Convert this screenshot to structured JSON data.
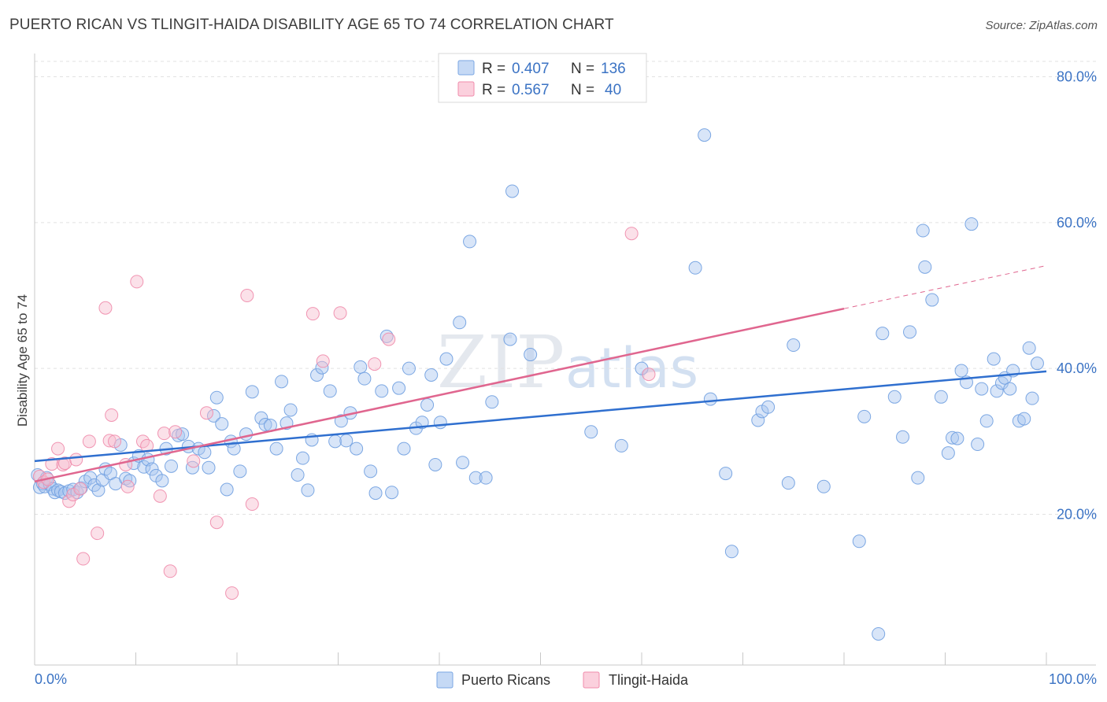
{
  "title": "PUERTO RICAN VS TLINGIT-HAIDA DISABILITY AGE 65 TO 74 CORRELATION CHART",
  "source": "Source: ZipAtlas.com",
  "watermark": {
    "part1": "ZIP",
    "part2": "atlas"
  },
  "legend": {
    "rows": [
      {
        "r_label": "R =",
        "r_value": "0.407",
        "n_label": "N =",
        "n_value": "136"
      },
      {
        "r_label": "R =",
        "r_value": "0.567",
        "n_label": "N =",
        "n_value": "40"
      }
    ]
  },
  "chart_data": {
    "type": "scatter",
    "title": "PUERTO RICAN VS TLINGIT-HAIDA DISABILITY AGE 65 TO 74 CORRELATION CHART",
    "ylabel": "Disability Age 65 to 74",
    "xlabel": "",
    "xlim": [
      0,
      100
    ],
    "ylim": [
      3,
      83
    ],
    "x_tick_labels": [
      "0.0%",
      "100.0%"
    ],
    "y_tick_labels": [
      "20.0%",
      "40.0%",
      "60.0%",
      "80.0%"
    ],
    "y_tick_values": [
      20,
      40,
      60,
      80
    ],
    "grid": "horizontal dashed",
    "legend_position": "top-center",
    "colors": {
      "puerto_ricans": "#6f9fe0",
      "tlingit_haida": "#f08bab",
      "blue_line": "#2f6fcf",
      "pink_line": "#e0668f"
    },
    "series": [
      {
        "name": "Puerto Ricans",
        "r": 0.407,
        "n": 136,
        "trend": {
          "x": [
            0,
            100
          ],
          "y": [
            27.3,
            39.6
          ]
        },
        "points": [
          [
            0.3,
            25.4
          ],
          [
            0.5,
            23.7
          ],
          [
            0.8,
            24.2
          ],
          [
            1,
            23.8
          ],
          [
            1.2,
            25
          ],
          [
            1.5,
            24.1
          ],
          [
            1.8,
            23.5
          ],
          [
            2,
            23
          ],
          [
            2.3,
            23.3
          ],
          [
            2.6,
            23.1
          ],
          [
            3,
            22.9
          ],
          [
            3.4,
            23.2
          ],
          [
            3.8,
            23.4
          ],
          [
            4.2,
            23
          ],
          [
            4.6,
            23.6
          ],
          [
            5,
            24.5
          ],
          [
            5.5,
            25
          ],
          [
            5.9,
            24
          ],
          [
            6.3,
            23.3
          ],
          [
            6.7,
            24.7
          ],
          [
            7,
            26.2
          ],
          [
            7.5,
            25.6
          ],
          [
            8,
            24.2
          ],
          [
            8.5,
            29.5
          ],
          [
            9,
            24.9
          ],
          [
            9.4,
            24.6
          ],
          [
            9.8,
            27
          ],
          [
            10.3,
            28
          ],
          [
            10.8,
            26.5
          ],
          [
            11.2,
            27.5
          ],
          [
            11.6,
            26.2
          ],
          [
            12,
            25.3
          ],
          [
            12.6,
            24.6
          ],
          [
            13,
            29
          ],
          [
            13.5,
            26.6
          ],
          [
            14.2,
            30.8
          ],
          [
            14.6,
            31
          ],
          [
            15.2,
            29.3
          ],
          [
            15.6,
            26.4
          ],
          [
            16.2,
            29
          ],
          [
            16.8,
            28.5
          ],
          [
            17.2,
            26.4
          ],
          [
            17.7,
            33.5
          ],
          [
            18,
            36
          ],
          [
            18.5,
            32.4
          ],
          [
            19,
            23.4
          ],
          [
            19.4,
            30
          ],
          [
            19.7,
            29
          ],
          [
            20.3,
            25.9
          ],
          [
            20.9,
            31
          ],
          [
            21.5,
            36.8
          ],
          [
            22.4,
            33.2
          ],
          [
            22.8,
            32.3
          ],
          [
            23.3,
            32.2
          ],
          [
            23.9,
            29
          ],
          [
            24.4,
            38.2
          ],
          [
            24.9,
            32.5
          ],
          [
            25.3,
            34.3
          ],
          [
            26,
            25.4
          ],
          [
            26.5,
            27.7
          ],
          [
            27,
            23.3
          ],
          [
            27.4,
            30.2
          ],
          [
            27.9,
            39.1
          ],
          [
            28.4,
            40.1
          ],
          [
            29.2,
            36.9
          ],
          [
            29.7,
            30
          ],
          [
            30.3,
            32.8
          ],
          [
            30.8,
            30.1
          ],
          [
            31.2,
            33.9
          ],
          [
            31.8,
            29
          ],
          [
            32.2,
            40.2
          ],
          [
            32.6,
            38.6
          ],
          [
            33.2,
            25.9
          ],
          [
            33.7,
            22.9
          ],
          [
            34.3,
            36.9
          ],
          [
            34.8,
            44.4
          ],
          [
            35.3,
            23
          ],
          [
            36,
            37.3
          ],
          [
            36.5,
            29
          ],
          [
            37,
            40
          ],
          [
            37.7,
            31.8
          ],
          [
            38.3,
            32.6
          ],
          [
            38.8,
            35
          ],
          [
            39.2,
            39.1
          ],
          [
            39.6,
            26.8
          ],
          [
            40.1,
            32.6
          ],
          [
            40.7,
            41.3
          ],
          [
            42,
            46.3
          ],
          [
            42.3,
            27.1
          ],
          [
            43,
            57.4
          ],
          [
            43.6,
            25
          ],
          [
            44.6,
            25
          ],
          [
            45.2,
            35.4
          ],
          [
            47,
            44
          ],
          [
            47.2,
            64.3
          ],
          [
            49,
            41.9
          ],
          [
            55,
            31.3
          ],
          [
            58,
            29.4
          ],
          [
            60,
            40
          ],
          [
            65.3,
            53.8
          ],
          [
            66.2,
            72
          ],
          [
            66.8,
            35.8
          ],
          [
            68.3,
            25.6
          ],
          [
            68.9,
            14.9
          ],
          [
            71.5,
            32.9
          ],
          [
            71.9,
            34.1
          ],
          [
            72.5,
            34.7
          ],
          [
            74.5,
            24.3
          ],
          [
            75,
            43.2
          ],
          [
            78,
            23.8
          ],
          [
            81.5,
            16.3
          ],
          [
            82,
            33.4
          ],
          [
            83.4,
            3.6
          ],
          [
            83.8,
            44.8
          ],
          [
            85,
            36.1
          ],
          [
            85.8,
            30.6
          ],
          [
            86.5,
            45
          ],
          [
            87.3,
            25
          ],
          [
            87.8,
            58.9
          ],
          [
            88,
            53.9
          ],
          [
            88.7,
            49.4
          ],
          [
            89.6,
            36.1
          ],
          [
            90.3,
            28.4
          ],
          [
            90.7,
            30.5
          ],
          [
            91.2,
            30.4
          ],
          [
            91.6,
            39.7
          ],
          [
            92.1,
            38.1
          ],
          [
            92.6,
            59.8
          ],
          [
            93.2,
            29.6
          ],
          [
            93.6,
            37.2
          ],
          [
            94.1,
            32.8
          ],
          [
            94.8,
            41.3
          ],
          [
            95.1,
            36.9
          ],
          [
            95.6,
            38
          ],
          [
            95.9,
            38.7
          ],
          [
            96.4,
            37.2
          ],
          [
            96.7,
            39.7
          ],
          [
            97.3,
            32.8
          ],
          [
            97.8,
            33.1
          ],
          [
            98.3,
            42.8
          ],
          [
            98.6,
            35.9
          ],
          [
            99.1,
            40.7
          ]
        ]
      },
      {
        "name": "Tlingit-Haida",
        "r": 0.567,
        "n": 40,
        "trend": {
          "x": [
            0,
            80
          ],
          "y": [
            24.5,
            48.2
          ]
        },
        "trend_dashed": {
          "x": [
            80,
            100
          ],
          "y": [
            48.2,
            54.1
          ]
        },
        "points": [
          [
            0.5,
            25.2
          ],
          [
            0.9,
            24.4
          ],
          [
            1.3,
            24.8
          ],
          [
            1.7,
            26.9
          ],
          [
            2.3,
            29
          ],
          [
            2.8,
            26.8
          ],
          [
            3,
            27
          ],
          [
            3.4,
            21.8
          ],
          [
            3.8,
            22.7
          ],
          [
            4.1,
            27.5
          ],
          [
            4.5,
            23.5
          ],
          [
            4.8,
            13.9
          ],
          [
            5.4,
            30
          ],
          [
            6.2,
            17.4
          ],
          [
            7,
            48.3
          ],
          [
            7.4,
            30.1
          ],
          [
            7.6,
            33.6
          ],
          [
            7.9,
            30
          ],
          [
            9,
            26.8
          ],
          [
            9.2,
            23.8
          ],
          [
            10.1,
            51.9
          ],
          [
            10.7,
            30
          ],
          [
            11.1,
            29.4
          ],
          [
            12.4,
            22.5
          ],
          [
            12.8,
            31.1
          ],
          [
            13.4,
            12.2
          ],
          [
            13.9,
            31.3
          ],
          [
            15.7,
            27.3
          ],
          [
            17,
            33.9
          ],
          [
            18,
            18.9
          ],
          [
            19.5,
            9.2
          ],
          [
            21,
            50
          ],
          [
            21.5,
            21.4
          ],
          [
            27.5,
            47.5
          ],
          [
            28.5,
            41
          ],
          [
            30.2,
            47.6
          ],
          [
            33.6,
            40.6
          ],
          [
            35,
            44
          ],
          [
            59,
            58.5
          ],
          [
            60.7,
            39.2
          ]
        ]
      }
    ]
  },
  "bottom_legend": [
    "Puerto Ricans",
    "Tlingit-Haida"
  ]
}
